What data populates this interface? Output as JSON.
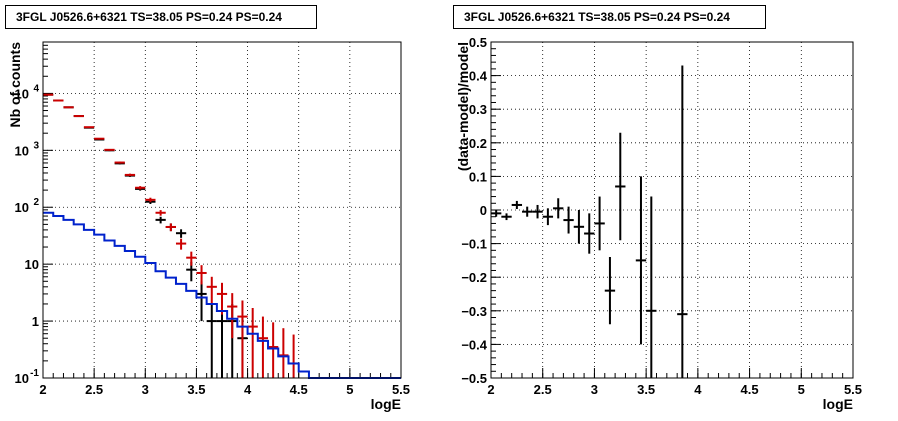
{
  "chart_data": [
    {
      "type": "histogram",
      "title": "3FGL J0526.6+6321 TS=38.05 PS=0.24 PS=0.24",
      "xlabel": "logE",
      "ylabel": "Nb of counts",
      "xlim": [
        2,
        5.5
      ],
      "ylim": [
        0.1,
        80000
      ],
      "yscale": "log",
      "grid": true,
      "x_ticks": [
        "2",
        "2.5",
        "3",
        "3.5",
        "4",
        "4.5",
        "5",
        "5.5"
      ],
      "y_ticks": [
        {
          "label": "10",
          "sup": "-1",
          "value": 0.1
        },
        {
          "label": "1",
          "sup": "",
          "value": 1
        },
        {
          "label": "10",
          "sup": "",
          "value": 10
        },
        {
          "label": "10",
          "sup": "2",
          "value": 100
        },
        {
          "label": "10",
          "sup": "3",
          "value": 1000
        },
        {
          "label": "10",
          "sup": "4",
          "value": 10000
        }
      ],
      "bin_width": 0.1,
      "series": [
        {
          "color": "#000000",
          "style": "points",
          "x": [
            2.05,
            2.15,
            2.25,
            2.35,
            2.45,
            2.55,
            2.65,
            2.75,
            2.85,
            2.95,
            3.05,
            3.15,
            3.25,
            3.35,
            3.45,
            3.55,
            3.65,
            3.75,
            3.85,
            3.95
          ],
          "y": [
            9500,
            7500,
            5700,
            4000,
            2500,
            1550,
            1000,
            590,
            360,
            210,
            125,
            60,
            45,
            35,
            8,
            3,
            1,
            1,
            1,
            0.5
          ],
          "err": [
            97,
            87,
            75,
            63,
            50,
            39,
            32,
            24,
            19,
            14,
            11,
            8,
            7,
            6,
            3,
            2,
            1,
            1,
            1,
            0.7
          ]
        },
        {
          "color": "#cc0000",
          "style": "points",
          "x": [
            2.05,
            2.15,
            2.25,
            2.35,
            2.45,
            2.55,
            2.65,
            2.75,
            2.85,
            2.95,
            3.05,
            3.15,
            3.25,
            3.35,
            3.45,
            3.55,
            3.65,
            3.75,
            3.85,
            3.95,
            4.05,
            4.15,
            4.25,
            4.35,
            4.45
          ],
          "y": [
            9500,
            7500,
            5700,
            4000,
            2550,
            1600,
            1020,
            610,
            370,
            220,
            135,
            80,
            45,
            23,
            13,
            7,
            4,
            3,
            1.8,
            1.2,
            0.8,
            0.5,
            0.35,
            0.25,
            0.18
          ],
          "err": [
            97,
            87,
            75,
            63,
            50,
            40,
            32,
            25,
            19,
            15,
            12,
            9,
            7,
            5,
            3.6,
            2.6,
            2,
            1.7,
            1.3,
            1.1,
            0.9,
            0.7,
            0.6,
            0.5,
            0.4
          ]
        },
        {
          "color": "#0022cc",
          "style": "step",
          "x": [
            2.05,
            2.15,
            2.25,
            2.35,
            2.45,
            2.55,
            2.65,
            2.75,
            2.85,
            2.95,
            3.05,
            3.15,
            3.25,
            3.35,
            3.45,
            3.55,
            3.65,
            3.75,
            3.85,
            3.95,
            4.05,
            4.15,
            4.25,
            4.35,
            4.45,
            4.55,
            4.65,
            4.75,
            4.85,
            4.95,
            5.05,
            5.15,
            5.25,
            5.35,
            5.45
          ],
          "y": [
            80,
            70,
            60,
            50,
            40,
            33,
            26,
            21,
            17,
            13.5,
            10.5,
            7.5,
            5.8,
            4.5,
            3.4,
            2.6,
            2.0,
            1.5,
            1.1,
            0.8,
            0.6,
            0.45,
            0.33,
            0.24,
            0.18,
            0.13,
            0.1,
            0.1,
            0.1,
            0.1,
            0.1,
            0.1,
            0.1,
            0.1,
            0.1
          ]
        }
      ]
    },
    {
      "type": "scatter",
      "title": "3FGL J0526.6+6321 TS=38.05 PS=0.24 PS=0.24",
      "xlabel": "logE",
      "ylabel": "(data-model)/model",
      "xlim": [
        2,
        5.5
      ],
      "ylim": [
        -0.5,
        0.5
      ],
      "grid": true,
      "x_ticks": [
        "2",
        "2.5",
        "3",
        "3.5",
        "4",
        "4.5",
        "5",
        "5.5"
      ],
      "y_ticks": [
        "0.5",
        "0.4",
        "0.3",
        "0.2",
        "0.1",
        "0",
        "−0.1",
        "−0.2",
        "−0.3",
        "−0.4",
        "−0.5"
      ],
      "bin_width": 0.1,
      "series": [
        {
          "color": "#000000",
          "x": [
            2.05,
            2.15,
            2.25,
            2.35,
            2.45,
            2.55,
            2.65,
            2.75,
            2.85,
            2.95,
            3.05,
            3.15,
            3.25,
            3.45,
            3.55,
            3.85
          ],
          "y": [
            -0.01,
            -0.02,
            0.015,
            -0.005,
            -0.005,
            -0.02,
            0.005,
            -0.03,
            -0.05,
            -0.07,
            -0.04,
            -0.24,
            0.07,
            -0.15,
            -0.3,
            -0.31
          ],
          "err": [
            0.01,
            0.01,
            0.012,
            0.015,
            0.02,
            0.025,
            0.03,
            0.04,
            0.05,
            0.06,
            0.08,
            0.1,
            0.16,
            0.25,
            0.34,
            0.74
          ]
        }
      ]
    }
  ]
}
